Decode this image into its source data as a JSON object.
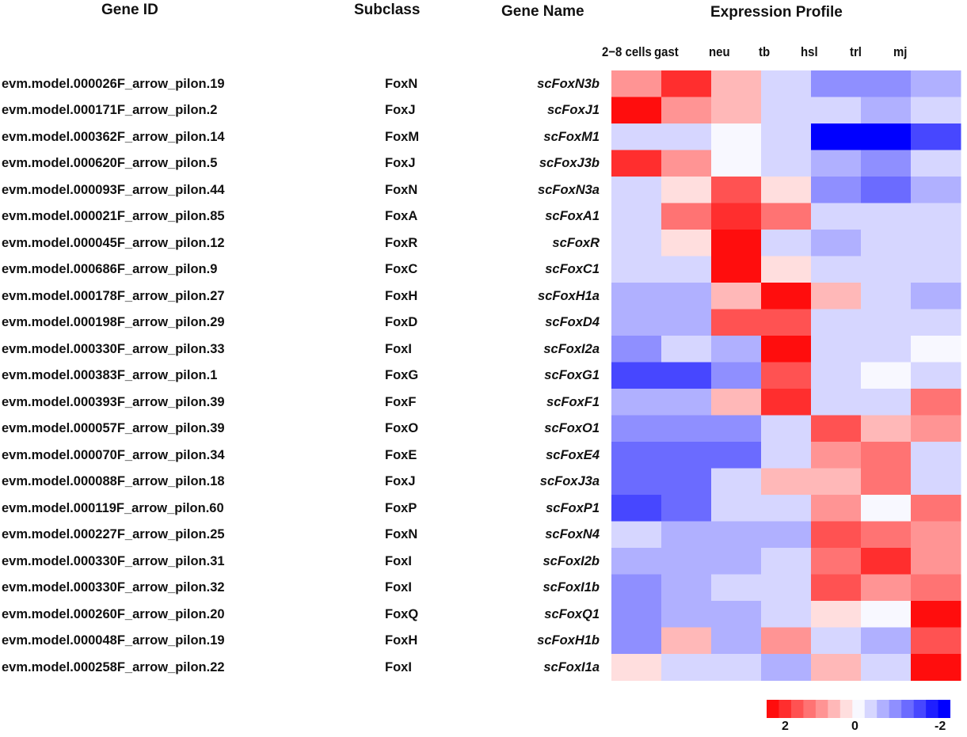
{
  "headers": {
    "gene_id": "Gene ID",
    "subclass": "Subclass",
    "gene_name": "Gene Name",
    "expression_profile": "Expression Profile"
  },
  "chart_data": {
    "type": "heatmap",
    "title": "Expression Profile",
    "columns": [
      "2−8 cells",
      "gast",
      "neu",
      "tb",
      "hsl",
      "trl",
      "mj"
    ],
    "rows": [
      {
        "gene_id": "evm.model.000026F_arrow_pilon.19",
        "subclass": "FoxN",
        "gene_name": "scFoxN3b",
        "values": [
          1.0,
          2.0,
          0.7,
          -0.35,
          -1.0,
          -1.0,
          -0.7
        ]
      },
      {
        "gene_id": "evm.model.000171F_arrow_pilon.2",
        "subclass": "FoxJ",
        "gene_name": "scFoxJ1",
        "values": [
          2.3,
          1.0,
          0.7,
          -0.35,
          -0.35,
          -0.7,
          -0.35
        ]
      },
      {
        "gene_id": "evm.model.000362F_arrow_pilon.14",
        "subclass": "FoxM",
        "gene_name": "scFoxM1",
        "values": [
          -0.35,
          -0.35,
          0.0,
          -0.35,
          -2.3,
          -2.3,
          -1.7
        ]
      },
      {
        "gene_id": "evm.model.000620F_arrow_pilon.5",
        "subclass": "FoxJ",
        "gene_name": "scFoxJ3b",
        "values": [
          2.0,
          1.0,
          0.0,
          -0.35,
          -0.7,
          -1.0,
          -0.35
        ]
      },
      {
        "gene_id": "evm.model.000093F_arrow_pilon.44",
        "subclass": "FoxN",
        "gene_name": "scFoxN3a",
        "values": [
          -0.35,
          0.35,
          1.7,
          0.35,
          -1.0,
          -1.4,
          -0.7
        ]
      },
      {
        "gene_id": "evm.model.000021F_arrow_pilon.85",
        "subclass": "FoxA",
        "gene_name": "scFoxA1",
        "values": [
          -0.35,
          1.4,
          2.0,
          1.4,
          -0.35,
          -0.35,
          -0.35
        ]
      },
      {
        "gene_id": "evm.model.000045F_arrow_pilon.12",
        "subclass": "FoxR",
        "gene_name": "scFoxR",
        "values": [
          -0.35,
          0.35,
          2.3,
          -0.35,
          -0.7,
          -0.35,
          -0.35
        ]
      },
      {
        "gene_id": "evm.model.000686F_arrow_pilon.9",
        "subclass": "FoxC",
        "gene_name": "scFoxC1",
        "values": [
          -0.35,
          -0.35,
          2.3,
          0.35,
          -0.35,
          -0.35,
          -0.35
        ]
      },
      {
        "gene_id": "evm.model.000178F_arrow_pilon.27",
        "subclass": "FoxH",
        "gene_name": "scFoxH1a",
        "values": [
          -0.7,
          -0.7,
          0.7,
          2.3,
          0.7,
          -0.35,
          -0.7
        ]
      },
      {
        "gene_id": "evm.model.000198F_arrow_pilon.29",
        "subclass": "FoxD",
        "gene_name": "scFoxD4",
        "values": [
          -0.7,
          -0.7,
          1.7,
          1.7,
          -0.35,
          -0.35,
          -0.35
        ]
      },
      {
        "gene_id": "evm.model.000330F_arrow_pilon.33",
        "subclass": "FoxI",
        "gene_name": "scFoxI2a",
        "values": [
          -1.0,
          -0.35,
          -0.7,
          2.3,
          -0.35,
          -0.35,
          0.0
        ]
      },
      {
        "gene_id": "evm.model.000383F_arrow_pilon.1",
        "subclass": "FoxG",
        "gene_name": "scFoxG1",
        "values": [
          -1.7,
          -1.7,
          -1.0,
          1.7,
          -0.35,
          0.0,
          -0.35
        ]
      },
      {
        "gene_id": "evm.model.000393F_arrow_pilon.39",
        "subclass": "FoxF",
        "gene_name": "scFoxF1",
        "values": [
          -0.7,
          -0.7,
          0.7,
          2.0,
          -0.35,
          -0.35,
          1.4
        ]
      },
      {
        "gene_id": "evm.model.000057F_arrow_pilon.39",
        "subclass": "FoxO",
        "gene_name": "scFoxO1",
        "values": [
          -1.0,
          -1.0,
          -1.0,
          -0.35,
          1.7,
          0.7,
          1.0
        ]
      },
      {
        "gene_id": "evm.model.000070F_arrow_pilon.34",
        "subclass": "FoxE",
        "gene_name": "scFoxE4",
        "values": [
          -1.4,
          -1.4,
          -1.4,
          -0.35,
          1.0,
          1.4,
          -0.35
        ]
      },
      {
        "gene_id": "evm.model.000088F_arrow_pilon.18",
        "subclass": "FoxJ",
        "gene_name": "scFoxJ3a",
        "values": [
          -1.4,
          -1.4,
          -0.35,
          0.7,
          0.7,
          1.4,
          -0.35
        ]
      },
      {
        "gene_id": "evm.model.000119F_arrow_pilon.60",
        "subclass": "FoxP",
        "gene_name": "scFoxP1",
        "values": [
          -1.7,
          -1.4,
          -0.35,
          -0.35,
          1.0,
          0.0,
          1.4
        ]
      },
      {
        "gene_id": "evm.model.000227F_arrow_pilon.25",
        "subclass": "FoxN",
        "gene_name": "scFoxN4",
        "values": [
          -0.35,
          -0.7,
          -0.7,
          -0.7,
          1.7,
          1.4,
          1.0
        ]
      },
      {
        "gene_id": "evm.model.000330F_arrow_pilon.31",
        "subclass": "FoxI",
        "gene_name": "scFoxI2b",
        "values": [
          -0.7,
          -0.7,
          -0.7,
          -0.35,
          1.4,
          2.0,
          1.0
        ]
      },
      {
        "gene_id": "evm.model.000330F_arrow_pilon.32",
        "subclass": "FoxI",
        "gene_name": "scFoxI1b",
        "values": [
          -1.0,
          -0.7,
          -0.35,
          -0.35,
          1.7,
          1.0,
          1.4
        ]
      },
      {
        "gene_id": "evm.model.000260F_arrow_pilon.20",
        "subclass": "FoxQ",
        "gene_name": "scFoxQ1",
        "values": [
          -1.0,
          -0.7,
          -0.7,
          -0.35,
          0.35,
          0.0,
          2.3
        ]
      },
      {
        "gene_id": "evm.model.000048F_arrow_pilon.19",
        "subclass": "FoxH",
        "gene_name": "scFoxH1b",
        "values": [
          -1.0,
          0.7,
          -0.7,
          1.0,
          -0.35,
          -0.7,
          1.7
        ]
      },
      {
        "gene_id": "evm.model.000258F_arrow_pilon.22",
        "subclass": "FoxI",
        "gene_name": "scFoxI1a",
        "values": [
          0.35,
          -0.35,
          -0.35,
          -0.7,
          0.7,
          -0.35,
          2.3
        ]
      }
    ],
    "color_scale": {
      "range": [
        2.3,
        -2.3
      ],
      "steps": [
        "#FF0D0D",
        "#FF2E2E",
        "#FF5252",
        "#FF7373",
        "#FF9494",
        "#FFB8B8",
        "#FFDEDE",
        "#F8F8FF",
        "#D6D6FF",
        "#B0B0FF",
        "#8F8FFF",
        "#6B6BFF",
        "#4747FF",
        "#1F1FFF",
        "#0000FF"
      ],
      "tick_labels": [
        "2",
        "0",
        "-2"
      ],
      "legend_position": "bottom-right"
    }
  }
}
